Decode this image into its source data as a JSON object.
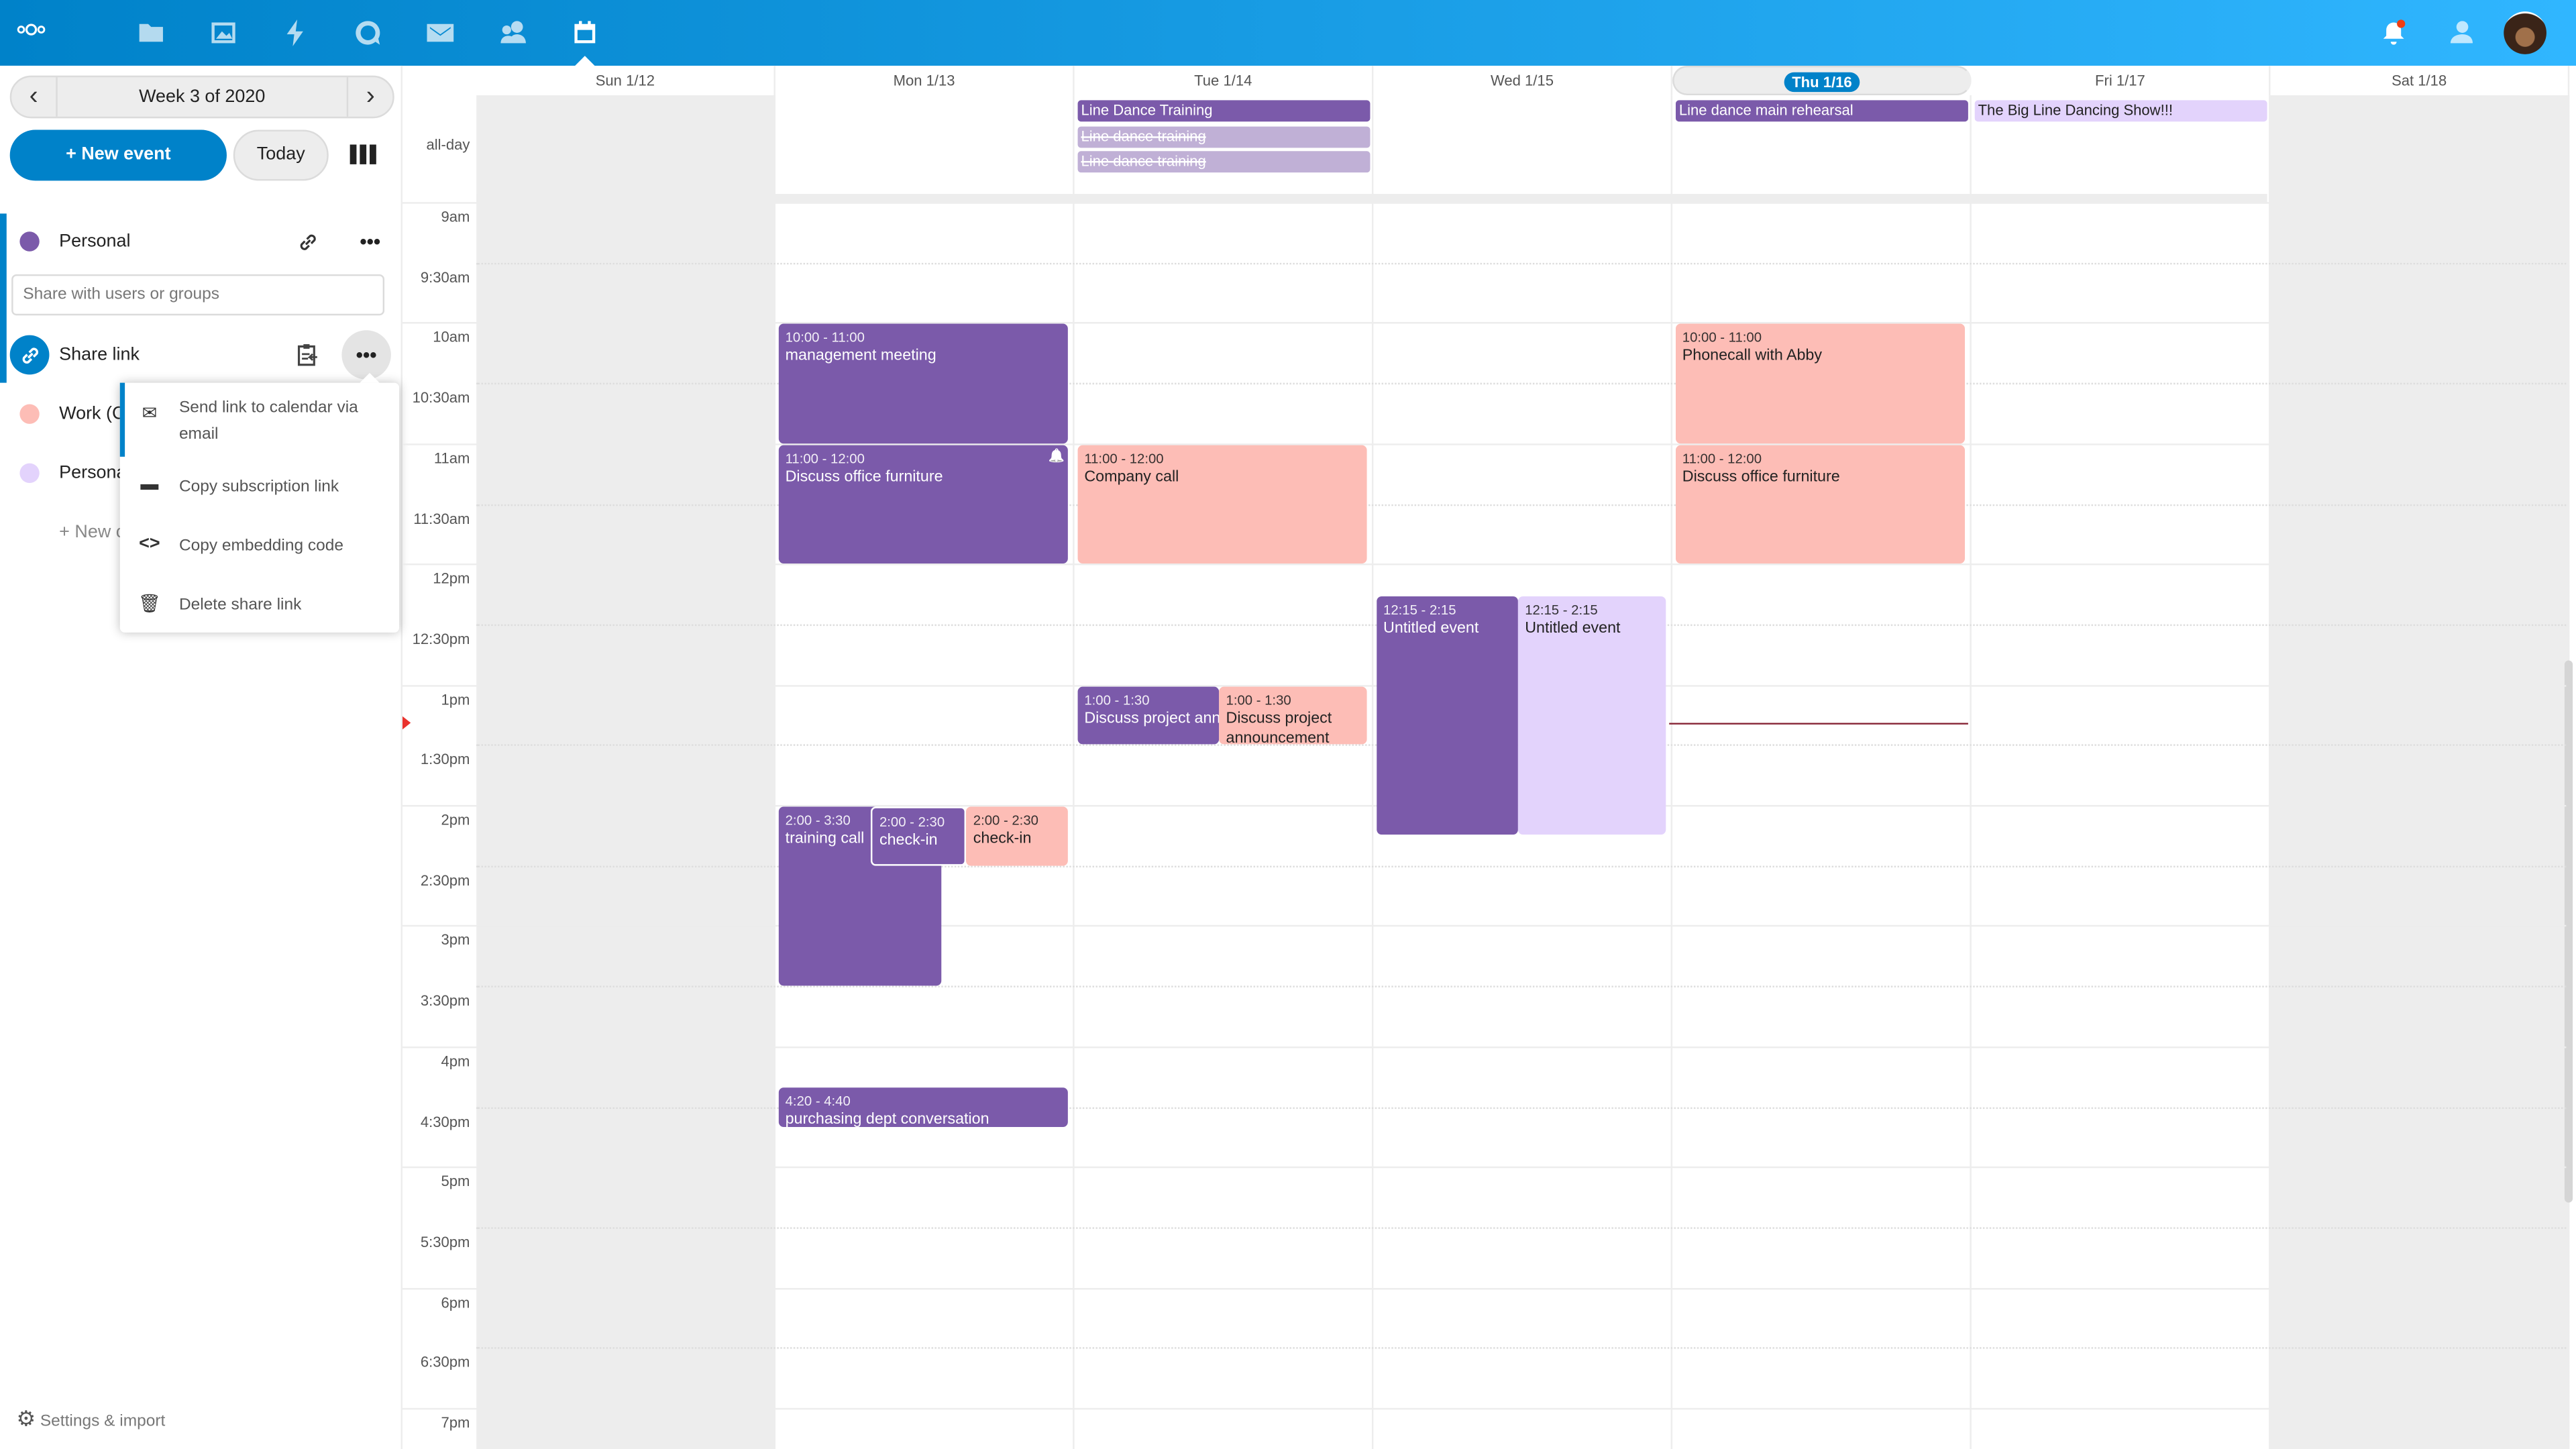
{
  "header": {
    "apps": [
      {
        "name": "files-icon"
      },
      {
        "name": "photos-icon"
      },
      {
        "name": "activity-icon"
      },
      {
        "name": "talk-icon"
      },
      {
        "name": "mail-icon"
      },
      {
        "name": "contacts-icon"
      },
      {
        "name": "calendar-icon",
        "active": true
      }
    ],
    "gradient": [
      "#0082c9",
      "#30b6ff"
    ]
  },
  "sidebar": {
    "week_label": "Week 3 of 2020",
    "new_event": "+ New event",
    "today": "Today",
    "calendars": [
      {
        "label": "Personal",
        "color": "#7b5aaa"
      },
      {
        "label": "Work (C",
        "color": "#fdbdb6"
      },
      {
        "label": "Persona",
        "color": "#e3d3fc"
      }
    ],
    "share_placeholder": "Share with users or groups",
    "share_link": "Share link",
    "new_calendar": "+ New c",
    "menu": {
      "send_email": "Send link to calendar via email",
      "copy_subscription": "Copy subscription link",
      "copy_embed": "Copy embedding code",
      "delete": "Delete share link"
    },
    "settings": "Settings & import"
  },
  "calendar": {
    "allday_label": "all-day",
    "days": [
      {
        "label": "Sun 1/12",
        "weekend": true
      },
      {
        "label": "Mon 1/13"
      },
      {
        "label": "Tue 1/14"
      },
      {
        "label": "Wed 1/15"
      },
      {
        "label": "Thu 1/16",
        "today": true
      },
      {
        "label": "Fri 1/17"
      },
      {
        "label": "Sat 1/18",
        "weekend": true
      }
    ],
    "time_labels": [
      "9am",
      "9:30am",
      "10am",
      "10:30am",
      "11am",
      "11:30am",
      "12pm",
      "12:30pm",
      "1pm",
      "1:30pm",
      "2pm",
      "2:30pm",
      "3pm",
      "3:30pm",
      "4pm",
      "4:30pm",
      "5pm",
      "5:30pm",
      "6pm",
      "6:30pm",
      "7pm"
    ],
    "colors": {
      "purple": "#7b5aaa",
      "pink": "#fdbdb6",
      "lavender": "#e3d3fc",
      "faded": "#c0b0d6",
      "today": "#0082c9"
    },
    "allday_events": [
      {
        "day": 2,
        "title": "Line Dance Training",
        "color": "purple"
      },
      {
        "day": 2,
        "title": "Line dance training",
        "color": "faded",
        "cancelled": true
      },
      {
        "day": 2,
        "title": "Line dance training",
        "color": "faded",
        "cancelled": true
      },
      {
        "day": 4,
        "title": "Line dance main rehearsal",
        "color": "purple"
      },
      {
        "day": 5,
        "title": "The Big Line Dancing Show!!!",
        "color": "lavender"
      }
    ],
    "events": [
      {
        "day": 1,
        "start": "10:00",
        "end": "11:00",
        "time": "10:00 - 11:00",
        "title": "management meeting",
        "color": "purple"
      },
      {
        "day": 1,
        "start": "11:00",
        "end": "12:00",
        "time": "11:00 - 12:00",
        "title": "Discuss office furniture",
        "color": "purple",
        "alarm": true
      },
      {
        "day": 1,
        "start": "14:00",
        "end": "15:30",
        "time": "2:00 - 3:30",
        "title": "training call",
        "color": "purple"
      },
      {
        "day": 1,
        "start": "14:00",
        "end": "14:30",
        "time": "2:00 - 2:30",
        "title": "check-in",
        "color": "purple"
      },
      {
        "day": 1,
        "start": "14:00",
        "end": "14:30",
        "time": "2:00 - 2:30",
        "title": "check-in",
        "color": "pink"
      },
      {
        "day": 1,
        "start": "16:20",
        "end": "16:40",
        "time": "4:20 - 4:40",
        "title": "purchasing dept conversation",
        "color": "purple"
      },
      {
        "day": 2,
        "start": "11:00",
        "end": "12:00",
        "time": "11:00 - 12:00",
        "title": "Company call",
        "color": "pink"
      },
      {
        "day": 2,
        "start": "13:00",
        "end": "13:30",
        "time": "1:00 - 1:30",
        "title": "Discuss project announcement",
        "color": "purple"
      },
      {
        "day": 2,
        "start": "13:00",
        "end": "13:30",
        "time": "1:00 - 1:30",
        "title": "Discuss project announcement",
        "color": "pink"
      },
      {
        "day": 3,
        "start": "12:15",
        "end": "14:15",
        "time": "12:15 - 2:15",
        "title": "Untitled event",
        "color": "purple"
      },
      {
        "day": 3,
        "start": "12:15",
        "end": "14:15",
        "time": "12:15 - 2:15",
        "title": "Untitled event",
        "color": "lavender"
      },
      {
        "day": 4,
        "start": "10:00",
        "end": "11:00",
        "time": "10:00 - 11:00",
        "title": "Phonecall with Abby",
        "color": "pink"
      },
      {
        "day": 4,
        "start": "11:00",
        "end": "12:00",
        "time": "11:00 - 12:00",
        "title": "Discuss office furniture",
        "color": "pink"
      }
    ]
  }
}
